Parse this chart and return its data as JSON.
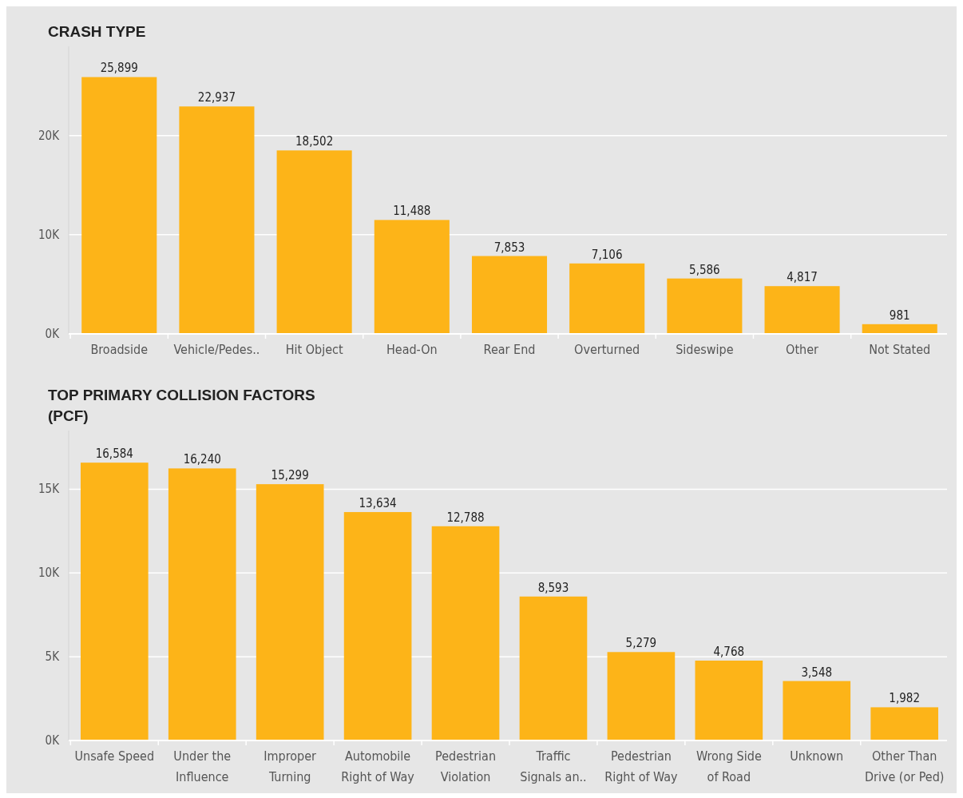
{
  "chart_data": [
    {
      "type": "bar",
      "title": "CRASH TYPE",
      "categories": [
        "Broadside",
        "Vehicle/Pedes..",
        "Hit Object",
        "Head-On",
        "Rear End",
        "Overturned",
        "Sideswipe",
        "Other",
        "Not Stated"
      ],
      "values": [
        25899,
        22937,
        18502,
        11488,
        7853,
        7106,
        5586,
        4817,
        981
      ],
      "value_labels": [
        "25,899",
        "22,937",
        "18,502",
        "11,488",
        "7,853",
        "7,106",
        "5,586",
        "4,817",
        "981"
      ],
      "color": "#fdb418",
      "grid": "y",
      "ylim": [
        0,
        29000
      ],
      "yticks": [
        {
          "value": 0,
          "label": "0K"
        },
        {
          "value": 10000,
          "label": "10K"
        },
        {
          "value": 20000,
          "label": "20K"
        }
      ]
    },
    {
      "type": "bar",
      "title": "TOP PRIMARY COLLISION FACTORS\n(PCF)",
      "categories": [
        "Unsafe Speed",
        "Under the\nInfluence",
        "Improper\nTurning",
        "Automobile\nRight of Way",
        "Pedestrian\nViolation",
        "Traffic\nSignals an..",
        "Pedestrian\nRight of Way",
        "Wrong Side\nof Road",
        "Unknown",
        "Other Than\nDrive (or Ped)"
      ],
      "values": [
        16584,
        16240,
        15299,
        13634,
        12788,
        8593,
        5279,
        4768,
        3548,
        1982
      ],
      "value_labels": [
        "16,584",
        "16,240",
        "15,299",
        "13,634",
        "12,788",
        "8,593",
        "5,279",
        "4,768",
        "3,548",
        "1,982"
      ],
      "color": "#fdb418",
      "grid": "y",
      "ylim": [
        0,
        18500
      ],
      "yticks": [
        {
          "value": 0,
          "label": "0K"
        },
        {
          "value": 5000,
          "label": "5K"
        },
        {
          "value": 10000,
          "label": "10K"
        },
        {
          "value": 15000,
          "label": "15K"
        }
      ]
    }
  ]
}
